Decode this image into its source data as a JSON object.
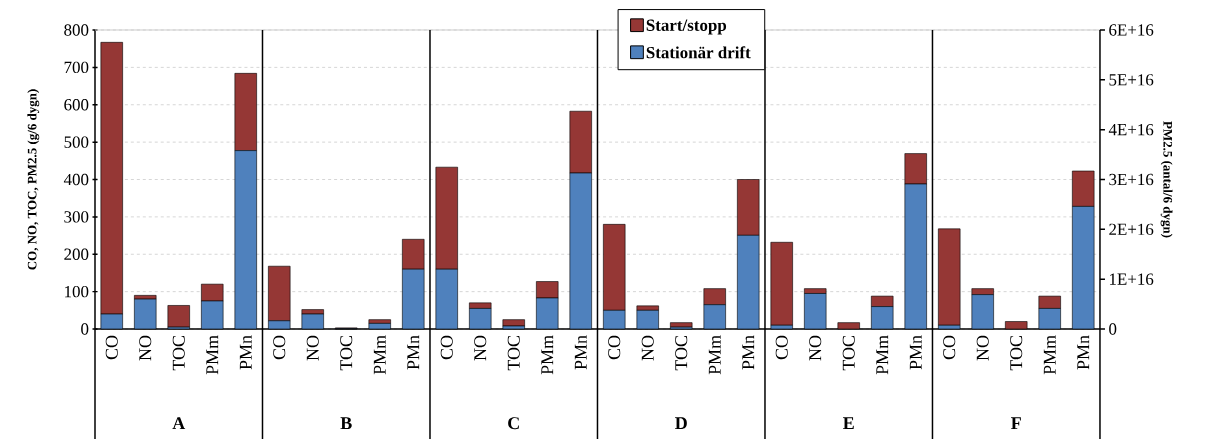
{
  "chart_data": {
    "type": "bar",
    "stacked": true,
    "ylabel": "CO, NO, TOC, PM2.5 (g/6 dygn)",
    "y2label": "PM2.5 (antal/6 dygn)",
    "categories": [
      "CO",
      "NO",
      "TOC",
      "PMm",
      "PMn",
      "CO",
      "NO",
      "TOC",
      "PMm",
      "PMn",
      "CO",
      "NO",
      "TOC",
      "PMm",
      "PMn",
      "CO",
      "NO",
      "TOC",
      "PMm",
      "PMn",
      "CO",
      "NO",
      "TOC",
      "PMm",
      "PMn",
      "CO",
      "NO",
      "TOC",
      "PMm",
      "PMn"
    ],
    "annotations": [
      "A",
      "B",
      "C",
      "D",
      "E",
      "F"
    ],
    "series": [
      {
        "name": "Stationär drift",
        "color": "#4f81bd",
        "values": [
          40,
          80,
          5,
          75,
          null,
          22,
          40,
          1,
          15,
          null,
          160,
          55,
          8,
          83,
          null,
          50,
          50,
          5,
          65,
          null,
          10,
          95,
          0,
          60,
          null,
          10,
          92,
          0,
          55,
          null
        ]
      },
      {
        "name": "Start/stopp",
        "color": "#953735",
        "values": [
          727,
          10,
          58,
          45,
          null,
          146,
          12,
          2,
          10,
          null,
          273,
          15,
          17,
          44,
          null,
          230,
          12,
          12,
          43,
          null,
          222,
          13,
          17,
          28,
          null,
          258,
          16,
          20,
          33,
          null
        ]
      },
      {
        "color": "#4f81bd",
        "axis": "y2",
        "values": [
          null,
          null,
          null,
          null,
          3.58e+16,
          null,
          null,
          null,
          null,
          1.2e+16,
          null,
          null,
          null,
          null,
          3.13e+16,
          null,
          null,
          null,
          null,
          1.88e+16,
          null,
          null,
          null,
          null,
          2.91e+16,
          null,
          null,
          null,
          null,
          2.46e+16
        ]
      },
      {
        "color": "#953735",
        "axis": "y2",
        "values": [
          null,
          null,
          null,
          null,
          1.55e+16,
          null,
          null,
          null,
          null,
          6000000000000000.0,
          null,
          null,
          null,
          null,
          1.24e+16,
          null,
          null,
          null,
          null,
          1.12e+16,
          null,
          null,
          null,
          null,
          6100000000000000.0,
          null,
          null,
          null,
          null,
          7100000000000000.0
        ]
      }
    ],
    "ylim": [
      0,
      800
    ],
    "yticks": [
      0,
      100,
      200,
      300,
      400,
      500,
      600,
      700,
      800
    ],
    "y2lim": [
      0,
      6e+16
    ],
    "y2ticks": [
      0,
      {
        "value": 1e+16,
        "label": "1E+16"
      },
      {
        "value": 2e+16,
        "label": "2E+16"
      },
      {
        "value": 3e+16,
        "label": "3E+16"
      },
      {
        "value": 4e+16,
        "label": "4E+16"
      },
      {
        "value": 5e+16,
        "label": "5E+16"
      },
      {
        "value": 6e+16,
        "label": "6E+16"
      }
    ],
    "grid": "y",
    "legend": "top"
  }
}
